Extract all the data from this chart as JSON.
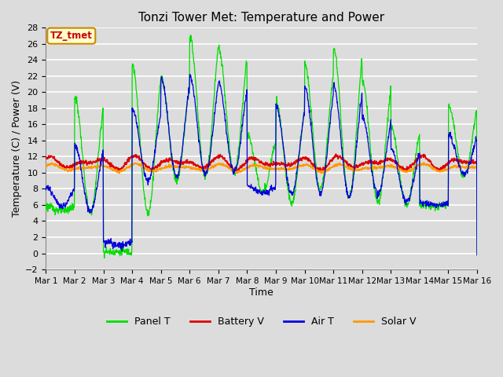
{
  "title": "Tonzi Tower Met: Temperature and Power",
  "xlabel": "Time",
  "ylabel": "Temperature (C) / Power (V)",
  "ylim": [
    -2,
    28
  ],
  "yticks": [
    -2,
    0,
    2,
    4,
    6,
    8,
    10,
    12,
    14,
    16,
    18,
    20,
    22,
    24,
    26,
    28
  ],
  "bg_color": "#dcdcdc",
  "plot_bg": "#dcdcdc",
  "annotation_label": "TZ_tmet",
  "annotation_bg": "#ffffcc",
  "annotation_border": "#cc8800",
  "legend_labels": [
    "Panel T",
    "Battery V",
    "Air T",
    "Solar V"
  ],
  "legend_colors": [
    "#00dd00",
    "#dd0000",
    "#0000dd",
    "#ff9900"
  ],
  "line_colors": {
    "panel_t": "#00dd00",
    "battery_v": "#dd0000",
    "air_t": "#0000dd",
    "solar_v": "#ff9900"
  },
  "num_days": 15,
  "points_per_day": 96,
  "panel_t_peaks": [
    5.8,
    19.5,
    0.2,
    23.5,
    22.0,
    27.0,
    25.5,
    14.8,
    19.0,
    23.5,
    25.7,
    21.5,
    15.8,
    6.0,
    18.5,
    13.0
  ],
  "panel_t_troughs": [
    5.3,
    5.0,
    0.2,
    5.0,
    9.0,
    9.5,
    10.0,
    7.5,
    6.3,
    8.0,
    7.0,
    6.3,
    6.0,
    5.8,
    9.5,
    12.0
  ],
  "air_t_peaks": [
    8.2,
    13.5,
    1.5,
    18.0,
    21.8,
    22.0,
    21.2,
    8.3,
    18.5,
    20.7,
    21.0,
    17.0,
    13.0,
    6.2,
    14.8,
    13.2
  ],
  "air_t_troughs": [
    5.8,
    5.2,
    1.0,
    9.0,
    9.5,
    9.8,
    10.0,
    7.5,
    7.3,
    7.5,
    7.0,
    7.3,
    6.5,
    6.0,
    9.8,
    11.8
  ],
  "battery_v_base": 11.2,
  "solar_v_base": 10.6,
  "title_fontsize": 11,
  "label_fontsize": 9,
  "tick_fontsize": 7.5
}
